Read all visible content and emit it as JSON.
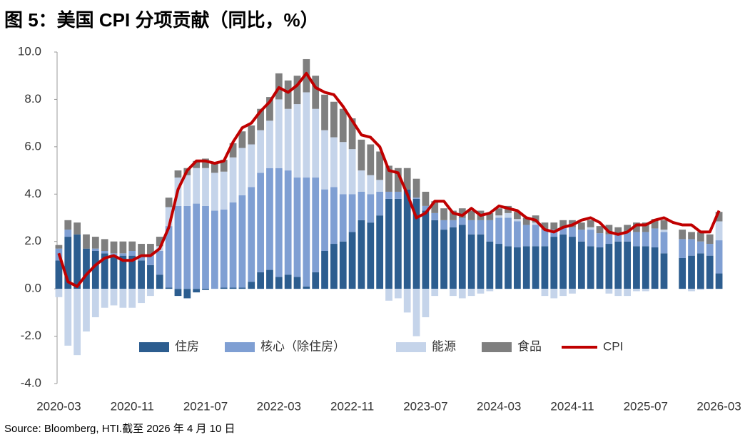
{
  "chart_data": {
    "type": "bar",
    "title": "图 5：美国 CPI 分项贡献（同比，%）",
    "source": "Source: Bloomberg, HTI.截至 2026 年 4 月 10 日",
    "categories": [
      "2020-03",
      null,
      null,
      null,
      null,
      null,
      null,
      null,
      "2020-11",
      null,
      null,
      null,
      null,
      null,
      null,
      null,
      "2021-07",
      null,
      null,
      null,
      null,
      null,
      null,
      null,
      "2022-03",
      null,
      null,
      null,
      null,
      null,
      null,
      null,
      "2022-11",
      null,
      null,
      null,
      null,
      null,
      null,
      null,
      "2023-07",
      null,
      null,
      null,
      null,
      null,
      null,
      null,
      "2024-03",
      null,
      null,
      null,
      null,
      null,
      null,
      null,
      "2024-11",
      null,
      null,
      null,
      null,
      null,
      null,
      null,
      "2025-07",
      null,
      null,
      null,
      null,
      null,
      null,
      null,
      "2026-03"
    ],
    "series": [
      {
        "name": "住房",
        "color": "#2c5d8f",
        "values": [
          1.2,
          2.2,
          2.3,
          1.7,
          1.6,
          1.5,
          1.4,
          1.4,
          1.4,
          1.2,
          1.0,
          0.6,
          0.05,
          -0.3,
          -0.4,
          -0.15,
          -0.05,
          0.0,
          0.05,
          0.05,
          0.05,
          0.3,
          0.7,
          0.8,
          0.5,
          0.6,
          0.5,
          0.1,
          0.7,
          1.6,
          1.9,
          2.0,
          2.4,
          2.9,
          2.8,
          3.1,
          3.8,
          3.8,
          4.2,
          3.8,
          3.3,
          2.9,
          2.5,
          2.6,
          2.7,
          2.3,
          2.3,
          2.0,
          1.9,
          1.8,
          1.75,
          1.8,
          1.8,
          1.8,
          2.2,
          2.3,
          2.2,
          2.0,
          1.8,
          1.75,
          1.9,
          2.0,
          2.0,
          1.8,
          1.8,
          1.75,
          1.5,
          null,
          1.3,
          1.4,
          1.5,
          1.4,
          0.65
        ]
      },
      {
        "name": "核心（除住房）",
        "color": "#7f9fd3",
        "values": [
          0.5,
          0.3,
          0.0,
          0.0,
          0.1,
          0.1,
          0.1,
          0.1,
          0.2,
          0.2,
          0.4,
          1.0,
          2.6,
          3.5,
          3.5,
          3.6,
          3.5,
          3.3,
          3.3,
          3.6,
          3.9,
          4.0,
          4.2,
          4.3,
          4.6,
          4.4,
          4.2,
          4.6,
          4.0,
          2.6,
          2.4,
          2.0,
          1.6,
          1.2,
          1.2,
          1.0,
          0.3,
          0.3,
          0.0,
          0.05,
          0.2,
          0.3,
          0.4,
          0.3,
          0.3,
          0.6,
          0.6,
          0.9,
          1.1,
          1.2,
          1.1,
          0.9,
          0.9,
          0.7,
          0.3,
          0.3,
          0.4,
          0.5,
          0.7,
          0.6,
          0.4,
          0.3,
          0.4,
          0.6,
          0.6,
          0.8,
          0.9,
          null,
          0.8,
          0.7,
          0.5,
          0.5,
          1.4
        ]
      },
      {
        "name": "能源",
        "color": "#c5d4ea",
        "values": [
          -0.35,
          -2.4,
          -2.8,
          -1.8,
          -1.2,
          -0.8,
          -0.7,
          -0.8,
          -0.8,
          -0.6,
          -0.3,
          0.2,
          0.8,
          1.2,
          1.3,
          1.5,
          1.6,
          1.6,
          1.6,
          1.9,
          2.0,
          1.8,
          1.8,
          2.0,
          2.9,
          2.6,
          3.1,
          3.6,
          2.9,
          2.5,
          2.1,
          2.2,
          1.9,
          0.9,
          0.8,
          0.5,
          -0.5,
          -0.4,
          -1.0,
          -2.0,
          -1.2,
          -0.3,
          0.0,
          -0.3,
          -0.4,
          -0.3,
          -0.2,
          -0.1,
          0.1,
          0.2,
          0.1,
          0.0,
          0.1,
          -0.3,
          -0.4,
          -0.3,
          -0.2,
          0.0,
          0.1,
          0.0,
          -0.2,
          -0.3,
          -0.3,
          -0.1,
          -0.1,
          0.0,
          0.1,
          null,
          0.0,
          -0.1,
          -0.05,
          0.0,
          0.8
        ]
      },
      {
        "name": "食品",
        "color": "#7f7f7f",
        "values": [
          0.15,
          0.4,
          0.5,
          0.6,
          0.5,
          0.5,
          0.5,
          0.5,
          0.4,
          0.5,
          0.5,
          0.4,
          0.4,
          0.3,
          0.3,
          0.3,
          0.4,
          0.4,
          0.5,
          0.6,
          0.7,
          0.8,
          0.9,
          1.0,
          1.1,
          1.2,
          1.2,
          1.4,
          1.4,
          1.5,
          1.5,
          1.4,
          1.3,
          1.3,
          1.3,
          1.2,
          1.1,
          1.0,
          0.9,
          0.8,
          0.6,
          0.5,
          0.5,
          0.4,
          0.4,
          0.4,
          0.4,
          0.3,
          0.3,
          0.3,
          0.3,
          0.3,
          0.3,
          0.3,
          0.3,
          0.3,
          0.3,
          0.3,
          0.3,
          0.3,
          0.4,
          0.3,
          0.3,
          0.4,
          0.4,
          0.4,
          0.4,
          null,
          0.4,
          0.3,
          0.4,
          0.4,
          0.4
        ]
      },
      {
        "name": "CPI",
        "type": "line",
        "color": "#c00000",
        "values": [
          1.5,
          0.3,
          0.1,
          0.6,
          1.0,
          1.3,
          1.4,
          1.2,
          1.2,
          1.4,
          1.4,
          1.7,
          2.6,
          4.2,
          5.0,
          5.4,
          5.4,
          5.3,
          5.4,
          6.2,
          6.8,
          7.0,
          7.5,
          7.9,
          8.5,
          8.3,
          8.6,
          9.1,
          8.5,
          8.3,
          8.2,
          7.7,
          7.1,
          6.5,
          6.4,
          6.0,
          5.0,
          4.9,
          4.0,
          3.0,
          3.2,
          3.7,
          3.7,
          3.2,
          3.1,
          3.4,
          3.1,
          3.2,
          3.5,
          3.4,
          3.3,
          3.0,
          2.9,
          2.5,
          2.4,
          2.6,
          2.7,
          2.9,
          3.0,
          2.8,
          2.4,
          2.3,
          2.4,
          2.7,
          2.7,
          2.9,
          3.0,
          2.8,
          2.7,
          2.7,
          2.4,
          2.4,
          3.3
        ]
      }
    ],
    "ylim": [
      -4,
      10
    ],
    "yticks": [
      {
        "value": -4,
        "label": "-4.0"
      },
      {
        "value": -2,
        "label": "-2.0"
      },
      {
        "value": 0,
        "label": "0.0"
      },
      {
        "value": 2,
        "label": "2.0"
      },
      {
        "value": 4,
        "label": "4.0"
      },
      {
        "value": 6,
        "label": "6.0"
      },
      {
        "value": 8,
        "label": "8.0"
      },
      {
        "value": 10,
        "label": "10.0"
      }
    ],
    "stacked": true,
    "grid": false,
    "legend": "lower center"
  }
}
